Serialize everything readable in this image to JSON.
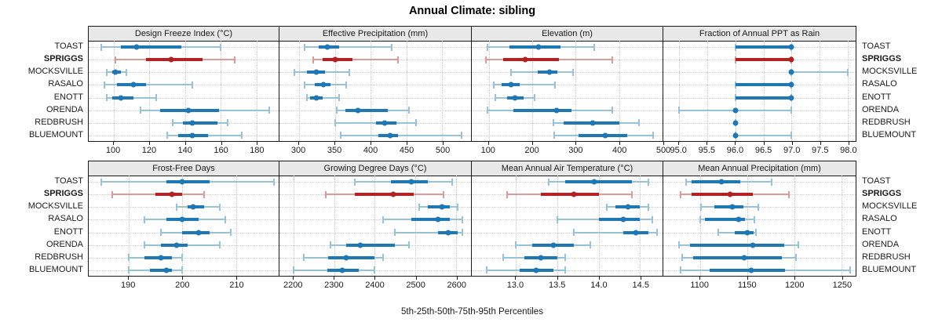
{
  "title": "Annual Climate: sibling",
  "caption": "5th-25th-50th-75th-95th Percentiles",
  "colors": {
    "normal": "#1f77b4",
    "normal_light": "#9ac2d6",
    "highlight": "#b22222",
    "highlight_light": "#dc9b9b",
    "strip_bg": "#e8e8e8",
    "grid": "#c9c9c9",
    "border": "#1a1a1a"
  },
  "chart_data": {
    "type": "dotplot-percentile-intervals",
    "percentile_labels": [
      "5th",
      "25th",
      "50th",
      "75th",
      "95th"
    ],
    "stations": [
      "TOAST",
      "SPRIGGS",
      "MOCKSVILLE",
      "RASALO",
      "ENOTT",
      "ORENDA",
      "REDBRUSH",
      "BLUEMOUNT"
    ],
    "highlight_station": "SPRIGGS",
    "legend_note": "highlighted station drawn in red, others in blue",
    "panels": [
      {
        "title": "Design Freeze Index (°C)",
        "row": 1,
        "xlim": [
          86,
          192.5
        ],
        "tick_values": [
          100,
          120,
          140,
          160,
          180
        ],
        "tick_labels": [
          "100",
          "120",
          "140",
          "160",
          "180"
        ],
        "values": {
          "TOAST": [
            93,
            104,
            113,
            138,
            160
          ],
          "SPRIGGS": [
            101,
            118,
            132,
            150,
            168
          ],
          "MOCKSVILLE": [
            96,
            99,
            101,
            104,
            107
          ],
          "RASALO": [
            95,
            102,
            111,
            118,
            144
          ],
          "ENOTT": [
            96,
            99,
            104,
            111,
            124
          ],
          "ORENDA": [
            115,
            126,
            142,
            159,
            187
          ],
          "REDBRUSH": [
            133,
            139,
            144,
            158,
            164
          ],
          "BLUEMOUNT": [
            130,
            136,
            144,
            153,
            172
          ]
        }
      },
      {
        "title": "Effective Precipitation (mm)",
        "row": 1,
        "xlim": [
          272.7,
          540.2
        ],
        "tick_values": [
          300,
          350,
          400,
          450,
          500
        ],
        "tick_labels": [
          "300",
          "350",
          "400",
          "450",
          "500"
        ],
        "values": {
          "TOAST": [
            308,
            327,
            340,
            356,
            429
          ],
          "SPRIGGS": [
            320,
            333,
            350,
            375,
            438
          ],
          "MOCKSVILLE": [
            293,
            311,
            324,
            336,
            370
          ],
          "RASALO": [
            308,
            322,
            334,
            344,
            366
          ],
          "ENOTT": [
            311,
            316,
            324,
            333,
            356
          ],
          "ORENDA": [
            353,
            365,
            382,
            424,
            454
          ],
          "REDBRUSH": [
            350,
            407,
            420,
            436,
            464
          ],
          "BLUEMOUNT": [
            358,
            411,
            427,
            438,
            527
          ]
        }
      },
      {
        "title": "Elevation (m)",
        "row": 1,
        "xlim": [
          61,
          500
        ],
        "tick_values": [
          100,
          200,
          300,
          400,
          500
        ],
        "tick_labels": [
          "100",
          "200",
          "300",
          "400",
          "500"
        ],
        "values": {
          "TOAST": [
            97,
            148,
            215,
            265,
            342
          ],
          "SPRIGGS": [
            94,
            133,
            184,
            262,
            384
          ],
          "MOCKSVILLE": [
            151,
            213,
            239,
            258,
            294
          ],
          "RASALO": [
            112,
            130,
            151,
            172,
            252
          ],
          "ENOTT": [
            115,
            142,
            161,
            181,
            206
          ],
          "ORENDA": [
            97,
            157,
            256,
            291,
            384
          ],
          "REDBRUSH": [
            249,
            273,
            340,
            400,
            445
          ],
          "BLUEMOUNT": [
            251,
            306,
            369,
            419,
            479
          ]
        }
      },
      {
        "title": "Fraction of Annual PPT as Rain",
        "row": 1,
        "xlim": [
          94.72,
          98.14
        ],
        "tick_values": [
          95.0,
          95.5,
          96.0,
          96.5,
          97.0,
          97.5,
          98.0
        ],
        "tick_labels": [
          "95.0",
          "95.5",
          "96.0",
          "96.5",
          "97.0",
          "97.5",
          "98.0"
        ],
        "values": {
          "TOAST": [
            96,
            96,
            97,
            97,
            97
          ],
          "SPRIGGS": [
            96,
            96,
            97,
            97,
            97
          ],
          "MOCKSVILLE": [
            97,
            97,
            97,
            97,
            98
          ],
          "RASALO": [
            96,
            96,
            97,
            97,
            97
          ],
          "ENOTT": [
            96,
            96,
            97,
            97,
            97
          ],
          "ORENDA": [
            95,
            96,
            96,
            96,
            97
          ],
          "REDBRUSH": [
            96,
            96,
            96,
            96,
            96
          ],
          "BLUEMOUNT": [
            96,
            96,
            96,
            96,
            97
          ]
        }
      },
      {
        "title": "Frost-Free Days",
        "row": 2,
        "xlim": [
          182.6,
          217.9
        ],
        "tick_values": [
          190,
          200,
          210
        ],
        "tick_labels": [
          "190",
          "200",
          "210"
        ],
        "values": {
          "TOAST": [
            185,
            197,
            200,
            205,
            217
          ],
          "SPRIGGS": [
            187,
            195,
            198,
            200,
            204
          ],
          "MOCKSVILLE": [
            199,
            201,
            202,
            204,
            207
          ],
          "RASALO": [
            193,
            197,
            200,
            203,
            208
          ],
          "ENOTT": [
            196,
            200,
            203,
            205,
            209
          ],
          "ORENDA": [
            193,
            196,
            199,
            201,
            207
          ],
          "REDBRUSH": [
            190,
            193,
            196,
            198,
            200
          ],
          "BLUEMOUNT": [
            190,
            194,
            197,
            198,
            200
          ]
        }
      },
      {
        "title": "Growing Degree Days (°C)",
        "row": 2,
        "xlim": [
          2165,
          2637
        ],
        "tick_values": [
          2200,
          2300,
          2400,
          2500,
          2600
        ],
        "tick_labels": [
          "2200",
          "2300",
          "2400",
          "2500",
          "2600"
        ],
        "values": {
          "TOAST": [
            2350,
            2440,
            2490,
            2530,
            2590
          ],
          "SPRIGGS": [
            2280,
            2350,
            2445,
            2495,
            2570
          ],
          "MOCKSVILLE": [
            2510,
            2530,
            2565,
            2585,
            2605
          ],
          "RASALO": [
            2420,
            2490,
            2555,
            2585,
            2615
          ],
          "ENOTT": [
            2450,
            2555,
            2580,
            2605,
            2615
          ],
          "ORENDA": [
            2290,
            2330,
            2365,
            2450,
            2485
          ],
          "REDBRUSH": [
            2225,
            2285,
            2330,
            2400,
            2420
          ],
          "BLUEMOUNT": [
            2200,
            2283,
            2320,
            2360,
            2400
          ]
        }
      },
      {
        "title": "Mean Annual Air Temperature (°C)",
        "row": 2,
        "xlim": [
          12.47,
          14.77
        ],
        "tick_values": [
          13.0,
          13.5,
          14.0,
          14.5
        ],
        "tick_labels": [
          "13.0",
          "13.5",
          "14.0",
          "14.5"
        ],
        "values": {
          "TOAST": [
            13.4,
            13.6,
            13.95,
            14.4,
            14.6
          ],
          "SPRIGGS": [
            12.9,
            13.3,
            13.7,
            14.0,
            14.4
          ],
          "MOCKSVILLE": [
            14.1,
            14.2,
            14.35,
            14.5,
            14.6
          ],
          "RASALO": [
            13.5,
            14.0,
            14.3,
            14.5,
            14.65
          ],
          "ENOTT": [
            13.7,
            14.3,
            14.45,
            14.6,
            14.7
          ],
          "ORENDA": [
            13.0,
            13.2,
            13.45,
            13.7,
            13.9
          ],
          "REDBRUSH": [
            12.85,
            13.1,
            13.3,
            13.5,
            13.6
          ],
          "BLUEMOUNT": [
            12.65,
            13.05,
            13.25,
            13.45,
            13.6
          ]
        }
      },
      {
        "title": "Mean Annual Precipitation (mm)",
        "row": 2,
        "xlim": [
          1061,
          1265
        ],
        "tick_values": [
          1100,
          1150,
          1200,
          1250
        ],
        "tick_labels": [
          "1100",
          "1150",
          "1200",
          "1250"
        ],
        "values": {
          "TOAST": [
            1085,
            1091,
            1123,
            1143,
            1176
          ],
          "SPRIGGS": [
            1079,
            1091,
            1132,
            1156,
            1194
          ],
          "MOCKSVILLE": [
            1101,
            1115,
            1134,
            1146,
            1162
          ],
          "RASALO": [
            1100,
            1105,
            1141,
            1148,
            1158
          ],
          "ENOTT": [
            1119,
            1137,
            1150,
            1157,
            1159
          ],
          "ORENDA": [
            1078,
            1089,
            1156,
            1189,
            1204
          ],
          "REDBRUSH": [
            1081,
            1093,
            1147,
            1187,
            1202
          ],
          "BLUEMOUNT": [
            1079,
            1110,
            1154,
            1190,
            1259
          ]
        }
      }
    ]
  }
}
